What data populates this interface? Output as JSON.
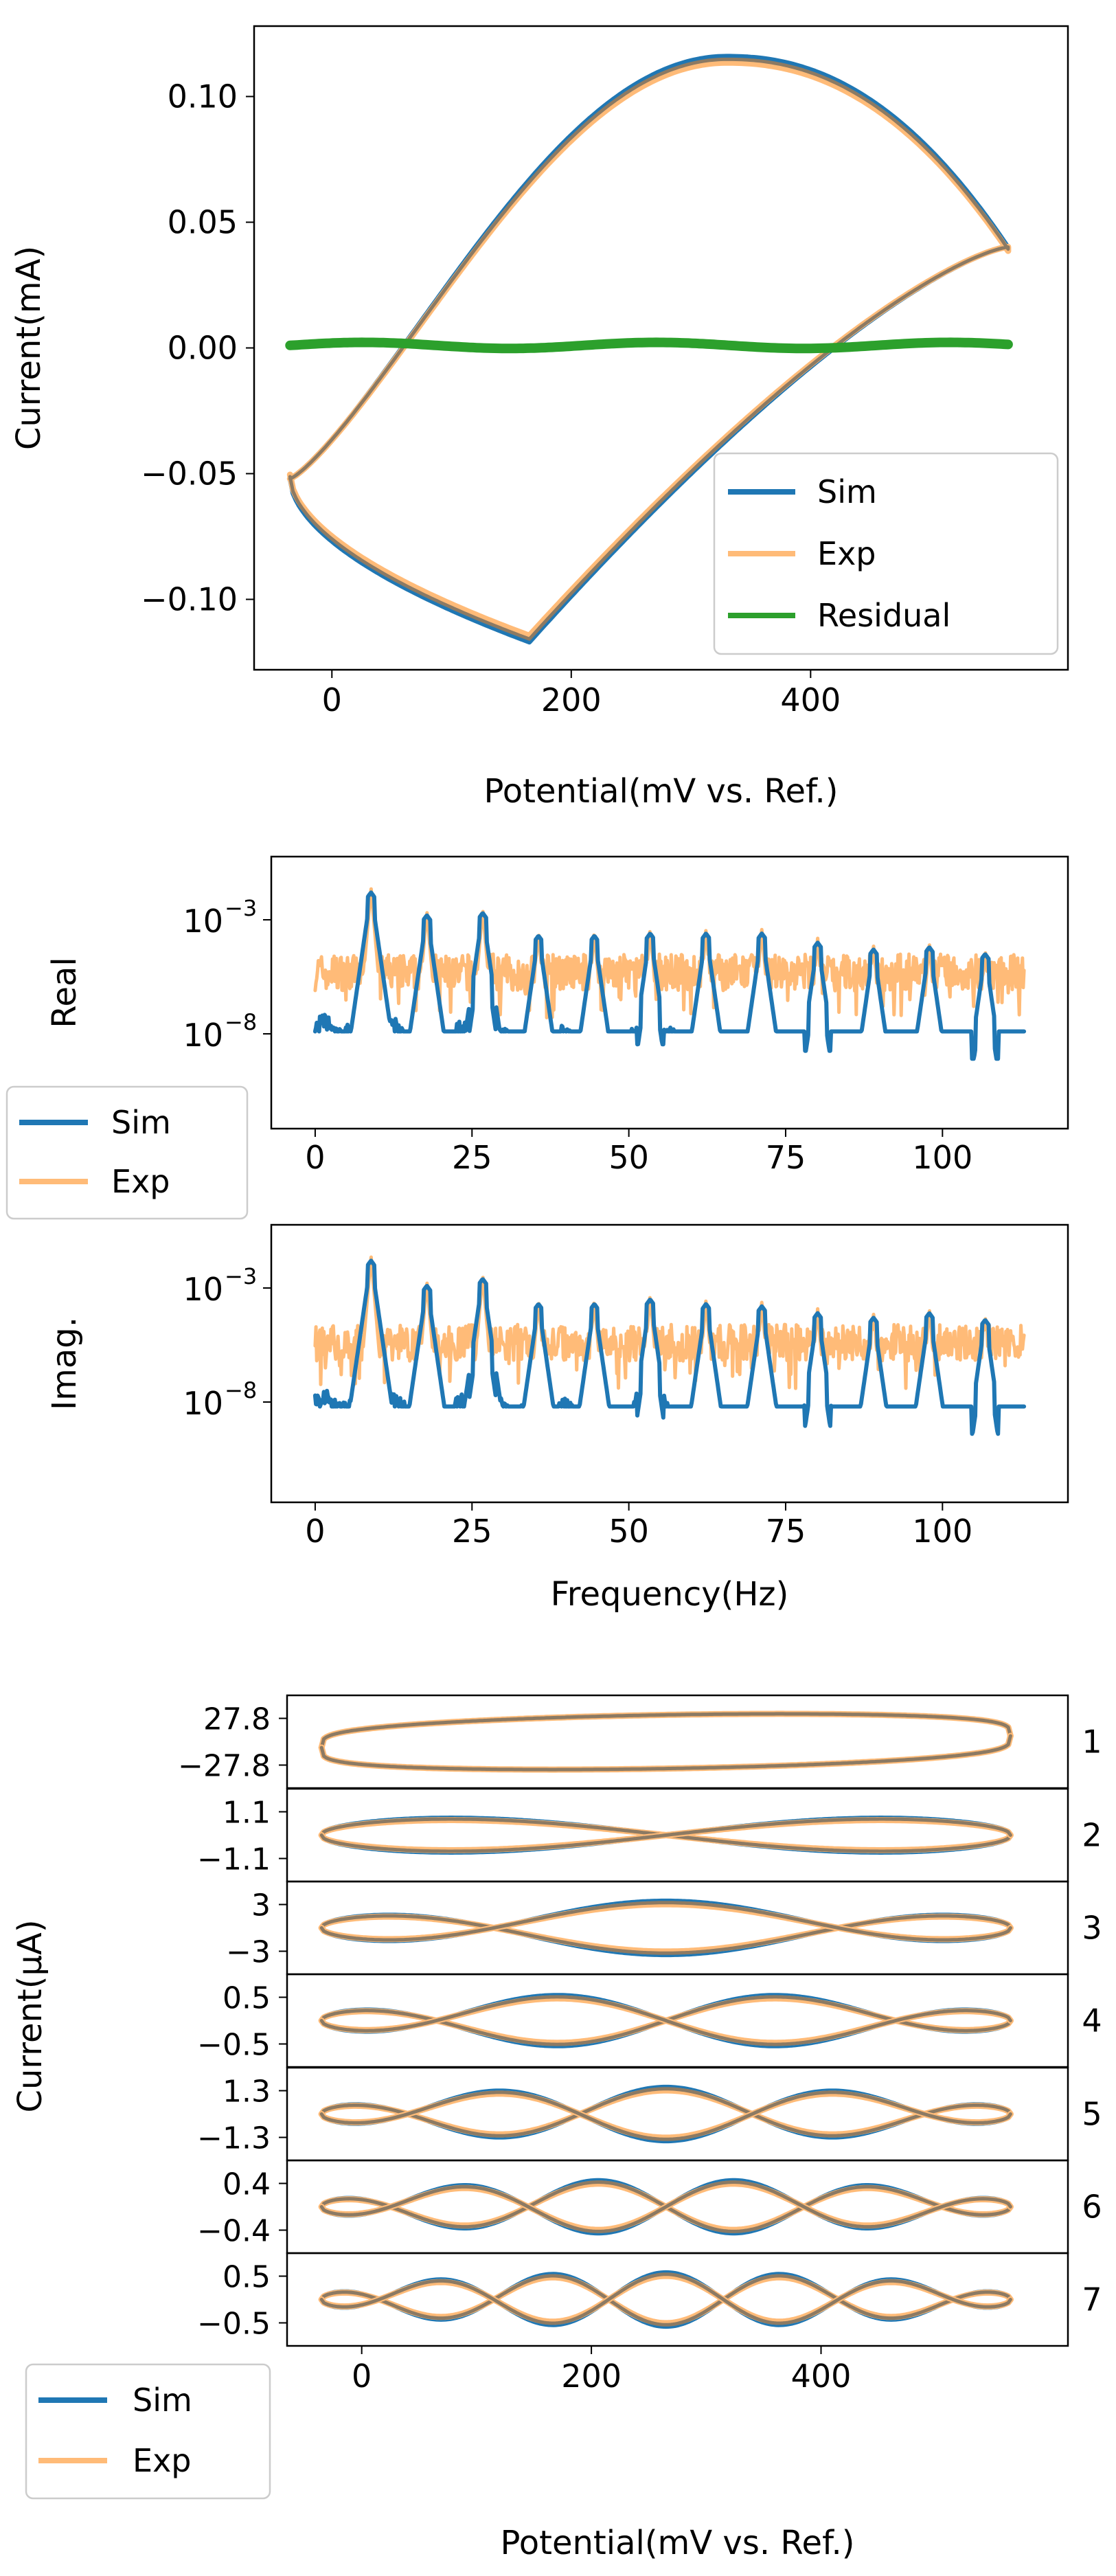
{
  "colors": {
    "sim": "#1f77b4",
    "exp": "#ffbb78",
    "residual": "#2ca02c",
    "overlap": "#8c7a63"
  },
  "chart_data": [
    {
      "type": "line",
      "panel": "cyclic-voltammogram",
      "xlabel": "Potential(mV vs. Ref.)",
      "ylabel": "Current(mA)",
      "xlim": [
        -65,
        615
      ],
      "ylim": [
        -0.128,
        0.128
      ],
      "xticks": [
        "0",
        "200",
        "400"
      ],
      "xtick_values": [
        0,
        200,
        400
      ],
      "yticks": [
        "0.10",
        "0.05",
        "0.00",
        "−0.05",
        "−0.10"
      ],
      "ytick_values": [
        0.1,
        0.05,
        0.0,
        -0.05,
        -0.1
      ],
      "legend": {
        "placement": "lower-right",
        "entries": [
          "Sim",
          "Exp",
          "Residual"
        ]
      },
      "loop": {
        "e_min": -35,
        "e_max": 565,
        "i_max": 0.116,
        "i_min": -0.117,
        "i_max_at": 330,
        "i_min_at": 165
      },
      "residual": {
        "x": [
          -35,
          565
        ],
        "y": [
          0.0,
          0.0
        ]
      }
    },
    {
      "type": "line",
      "panel": "fourier-real",
      "ylabel": "Real",
      "xlim": [
        -7,
        120
      ],
      "yscale": "log",
      "xticks": [
        "0",
        "25",
        "50",
        "75",
        "100"
      ],
      "xtick_values": [
        0,
        25,
        50,
        75,
        100
      ],
      "yticks": [
        "10",
        "10"
      ],
      "ytick_exponents": [
        "−3",
        "−8"
      ],
      "ytick_log": [
        -3,
        -8
      ],
      "legend": {
        "placement": "lower-left-outside",
        "entries": [
          "Sim",
          "Exp"
        ]
      },
      "harmonic_peaks_hz": [
        8.9,
        17.8,
        26.7,
        35.6,
        44.5,
        53.4,
        62.3,
        71.2,
        80.1,
        89.0,
        97.9,
        106.8
      ],
      "sim_peak_log": [
        -1.8,
        -2.8,
        -2.7,
        -3.7,
        -3.7,
        -3.6,
        -3.6,
        -3.6,
        -4.0,
        -4.3,
        -4.2,
        -4.5
      ],
      "sim_floor_log": -7.8,
      "exp_floor_log": -5.3
    },
    {
      "type": "line",
      "panel": "fourier-imag",
      "xlabel": "Frequency(Hz)",
      "ylabel": "Imag.",
      "xlim": [
        -7,
        120
      ],
      "yscale": "log",
      "xticks": [
        "0",
        "25",
        "50",
        "75",
        "100"
      ],
      "xtick_values": [
        0,
        25,
        50,
        75,
        100
      ],
      "yticks": [
        "10",
        "10"
      ],
      "ytick_exponents": [
        "−3",
        "−8"
      ],
      "ytick_log": [
        -3,
        -8
      ],
      "harmonic_peaks_hz": [
        8.9,
        17.8,
        26.7,
        35.6,
        44.5,
        53.4,
        62.3,
        71.2,
        80.1,
        89.0,
        97.9,
        106.8
      ],
      "sim_peak_log": [
        -1.8,
        -2.9,
        -2.6,
        -3.7,
        -3.7,
        -3.5,
        -3.7,
        -3.8,
        -4.1,
        -4.3,
        -4.1,
        -4.4
      ],
      "sim_floor_log": -8.1,
      "exp_floor_log": -5.4
    },
    {
      "type": "line",
      "panel": "harmonics",
      "xlabel": "Potential(mV vs. Ref.)",
      "ylabel": "Current(μA)",
      "xlim": [
        -65,
        615
      ],
      "xticks": [
        "0",
        "200",
        "400"
      ],
      "xtick_values": [
        0,
        200,
        400
      ],
      "legend": {
        "placement": "lower-left-outside",
        "entries": [
          "Sim",
          "Exp"
        ]
      },
      "harmonics": [
        {
          "label": "1",
          "yticks": [
            "27.8",
            "−27.8"
          ],
          "amplitude": 27.8
        },
        {
          "label": "2",
          "yticks": [
            "1.1",
            "−1.1"
          ],
          "amplitude": 1.1
        },
        {
          "label": "3",
          "yticks": [
            "3",
            "−3"
          ],
          "amplitude": 3
        },
        {
          "label": "4",
          "yticks": [
            "0.5",
            "−0.5"
          ],
          "amplitude": 0.5
        },
        {
          "label": "5",
          "yticks": [
            "1.3",
            "−1.3"
          ],
          "amplitude": 1.3
        },
        {
          "label": "6",
          "yticks": [
            "0.4",
            "−0.4"
          ],
          "amplitude": 0.4
        },
        {
          "label": "7",
          "yticks": [
            "0.5",
            "−0.5"
          ],
          "amplitude": 0.5
        }
      ]
    }
  ]
}
